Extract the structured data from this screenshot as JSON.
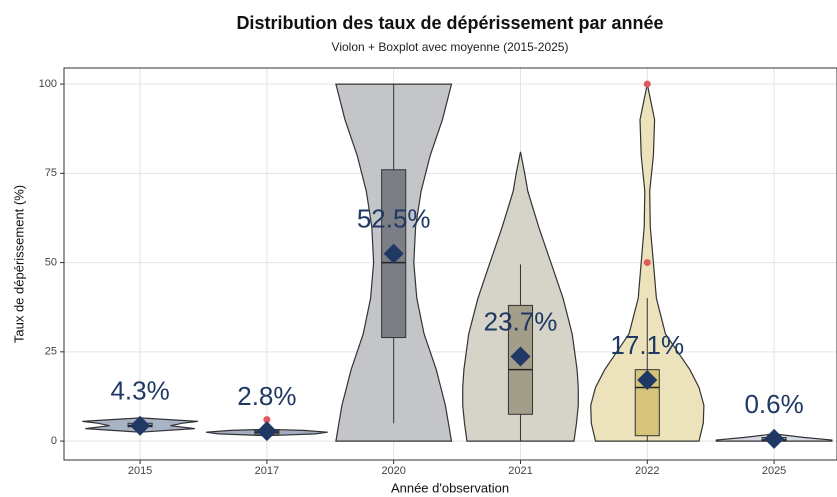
{
  "chart_data": {
    "type": "violin",
    "title": "Distribution des taux de dépérissement par année",
    "subtitle": "Violon + Boxplot avec moyenne (2015-2025)",
    "x_label": "Année d'observation",
    "y_label": "Taux de dépérissement (%)",
    "categories": [
      "2015",
      "2017",
      "2020",
      "2021",
      "2022",
      "2025"
    ],
    "colors": [
      "#a9b3c6",
      "#a3adbf",
      "#c3c5c8",
      "#d6d3c8",
      "#ece3bd",
      "#d6dbe4"
    ],
    "box_colors": [
      "#8b96ab",
      "#8b96ab",
      "#7b7f85",
      "#a39e89",
      "#d5c47a",
      "#8b96ab"
    ],
    "mean_color": "#1f3864",
    "outlier_color": "#e05a5f",
    "boxes": [
      {
        "min": 3.5,
        "q1": 4,
        "median": 4.3,
        "q3": 5,
        "max": 5.5
      },
      {
        "min": 1.8,
        "q1": 2,
        "median": 2.5,
        "q3": 3,
        "max": 3.3
      },
      {
        "min": 5,
        "q1": 29,
        "median": 50,
        "q3": 76,
        "max": 100
      },
      {
        "min": 0,
        "q1": 7.5,
        "median": 20,
        "q3": 38,
        "max": 49.5
      },
      {
        "min": 0,
        "q1": 1.5,
        "median": 15,
        "q3": 20,
        "max": 40
      },
      {
        "min": 0,
        "q1": 0,
        "median": 0.3,
        "q3": 1,
        "max": 2
      }
    ],
    "outliers": [
      [],
      [
        6
      ],
      [],
      [],
      [
        50,
        100
      ],
      []
    ],
    "means": [
      4.3,
      2.8,
      52.5,
      23.7,
      17.1,
      0.6
    ],
    "mean_labels": [
      "4.3%",
      "2.8%",
      "52.5%",
      "23.7%",
      "17.1%",
      "0.6%"
    ],
    "violins": [
      {
        "y": [
          2.5,
          3.5,
          4.3,
          5,
          5.5,
          6.5
        ],
        "width": [
          0,
          0.9,
          0.5,
          0.7,
          0.95,
          0
        ]
      },
      {
        "y": [
          1.5,
          2,
          2.5,
          3,
          3.3
        ],
        "width": [
          0,
          0.8,
          1,
          0.6,
          0
        ]
      },
      {
        "y": [
          0,
          10,
          20,
          30,
          40,
          50,
          60,
          70,
          80,
          90,
          100
        ],
        "width": [
          0.95,
          0.85,
          0.7,
          0.5,
          0.38,
          0.33,
          0.36,
          0.45,
          0.6,
          0.8,
          0.95
        ]
      },
      {
        "y": [
          0,
          5,
          10,
          15,
          20,
          30,
          40,
          50,
          60,
          70,
          75,
          81
        ],
        "width": [
          0.88,
          0.92,
          0.95,
          0.95,
          0.93,
          0.85,
          0.7,
          0.5,
          0.3,
          0.12,
          0.07,
          0
        ]
      },
      {
        "y": [
          0,
          5,
          10,
          15,
          20,
          25,
          30,
          40,
          50,
          60,
          70,
          80,
          90,
          100
        ],
        "width": [
          0.85,
          0.92,
          0.93,
          0.85,
          0.7,
          0.5,
          0.3,
          0.15,
          0.1,
          0.05,
          0.04,
          0.1,
          0.12,
          0
        ]
      },
      {
        "y": [
          0,
          0.3,
          1,
          2
        ],
        "width": [
          0.95,
          0.95,
          0.5,
          0
        ]
      }
    ],
    "ylim": [
      -5.3,
      104.5
    ],
    "yticks": [
      0,
      25,
      50,
      75,
      100
    ],
    "grid": true
  }
}
